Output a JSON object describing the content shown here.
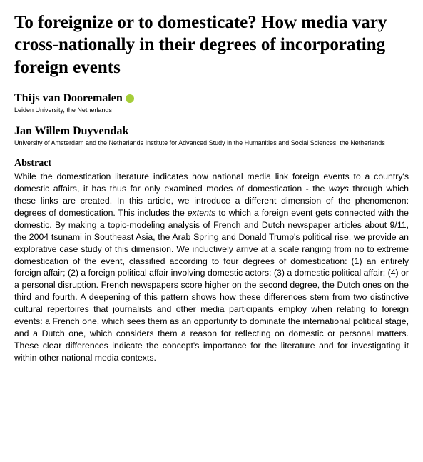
{
  "title": "To foreignize or to domesticate? How media vary cross-nationally in their degrees of incorporating foreign events",
  "authors": [
    {
      "name": "Thijs van Dooremalen",
      "affiliation": "Leiden University, the Netherlands",
      "has_orcid": true
    },
    {
      "name": "Jan Willem Duyvendak",
      "affiliation": "University of Amsterdam and the Netherlands Institute for Advanced Study in the Humanities and Social Sciences, the Netherlands",
      "has_orcid": false
    }
  ],
  "abstract_heading": "Abstract",
  "abstract_html": "While the domestication literature indicates how national media link foreign events to a country's domestic affairs, it has thus far only examined modes of domestication - the <em>ways</em> through which these links are created. In this article, we introduce a different dimension of the phenomenon: degrees of domestication. This includes the <em>extents</em> to which a foreign event gets connected with the domestic. By making a topic-modeling analysis of French and Dutch newspaper articles about 9/11, the 2004 tsunami in Southeast Asia, the Arab Spring and Donald Trump's political rise, we provide an explorative case study of this dimension. We inductively arrive at a scale ranging from no to extreme domestication of the event, classified according to four degrees of domestication: (1) an entirely foreign affair; (2) a foreign political affair involving domestic actors; (3) a domestic political affair; (4) or a personal disruption. French newspapers score higher on the second degree, the Dutch ones on the third and fourth. A deepening of this pattern shows how these differences stem from two distinctive cultural repertoires that journalists and other media participants employ when relating to foreign events: a French one, which sees them as an opportunity to dominate the international political stage, and a Dutch one, which considers them a reason for reflecting on domestic or personal matters. These clear differences indicate the concept's importance for the literature and for investigating it within other national media contexts."
}
